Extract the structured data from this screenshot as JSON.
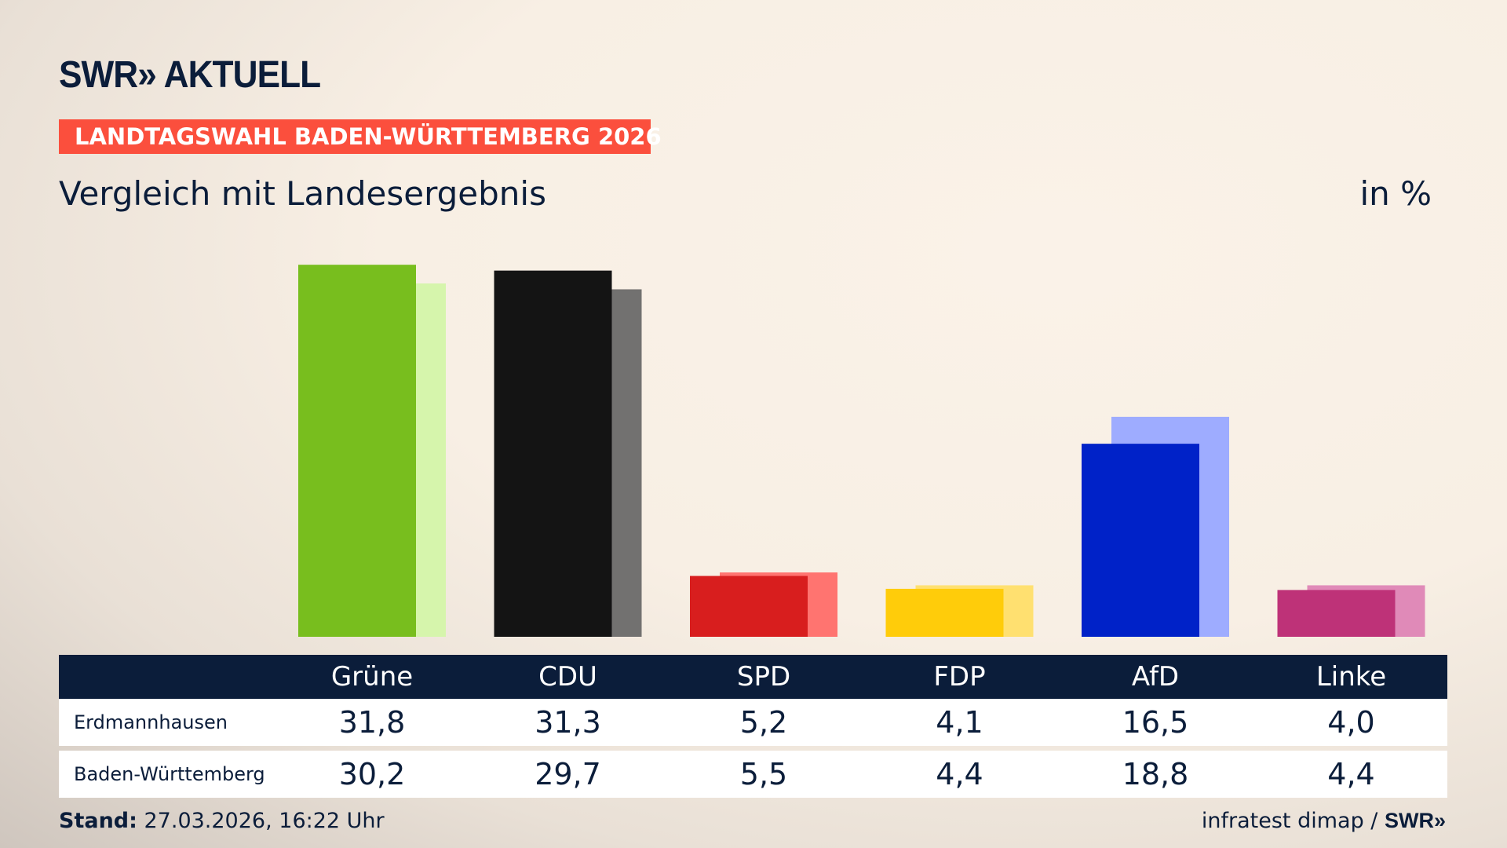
{
  "header": {
    "logo": "SWR» AKTUELL",
    "banner": "LANDTAGSWAHL BADEN-WÜRTTEMBERG 2026",
    "subtitle": "Vergleich mit Landesergebnis",
    "unit": "in %"
  },
  "chart_data": {
    "type": "bar",
    "categories": [
      "Grüne",
      "CDU",
      "SPD",
      "FDP",
      "AfD",
      "Linke"
    ],
    "series": [
      {
        "name": "Erdmannhausen",
        "values": [
          31.8,
          31.3,
          5.2,
          4.1,
          16.5,
          4.0
        ],
        "display": [
          "31,8",
          "31,3",
          "5,2",
          "4,1",
          "16,5",
          "4,0"
        ]
      },
      {
        "name": "Baden-Württemberg",
        "values": [
          30.2,
          29.7,
          5.5,
          4.4,
          18.8,
          4.4
        ],
        "display": [
          "30,2",
          "29,7",
          "5,5",
          "4,4",
          "18,8",
          "4,4"
        ]
      }
    ],
    "colors": [
      "#78be1e",
      "#141414",
      "#d81e1e",
      "#ffcc0a",
      "#0022c8",
      "#be3278"
    ],
    "light_colors": [
      "#d6f5ac",
      "#727170",
      "#ff7470",
      "#ffe070",
      "#9eacff",
      "#e08ab8"
    ],
    "ylim": [
      0,
      33
    ],
    "grid": false
  },
  "footer": {
    "stand_label": "Stand:",
    "stand_value": " 27.03.2026, 16:22 Uhr",
    "source": "infratest dimap / ",
    "source_logo": "SWR»"
  }
}
